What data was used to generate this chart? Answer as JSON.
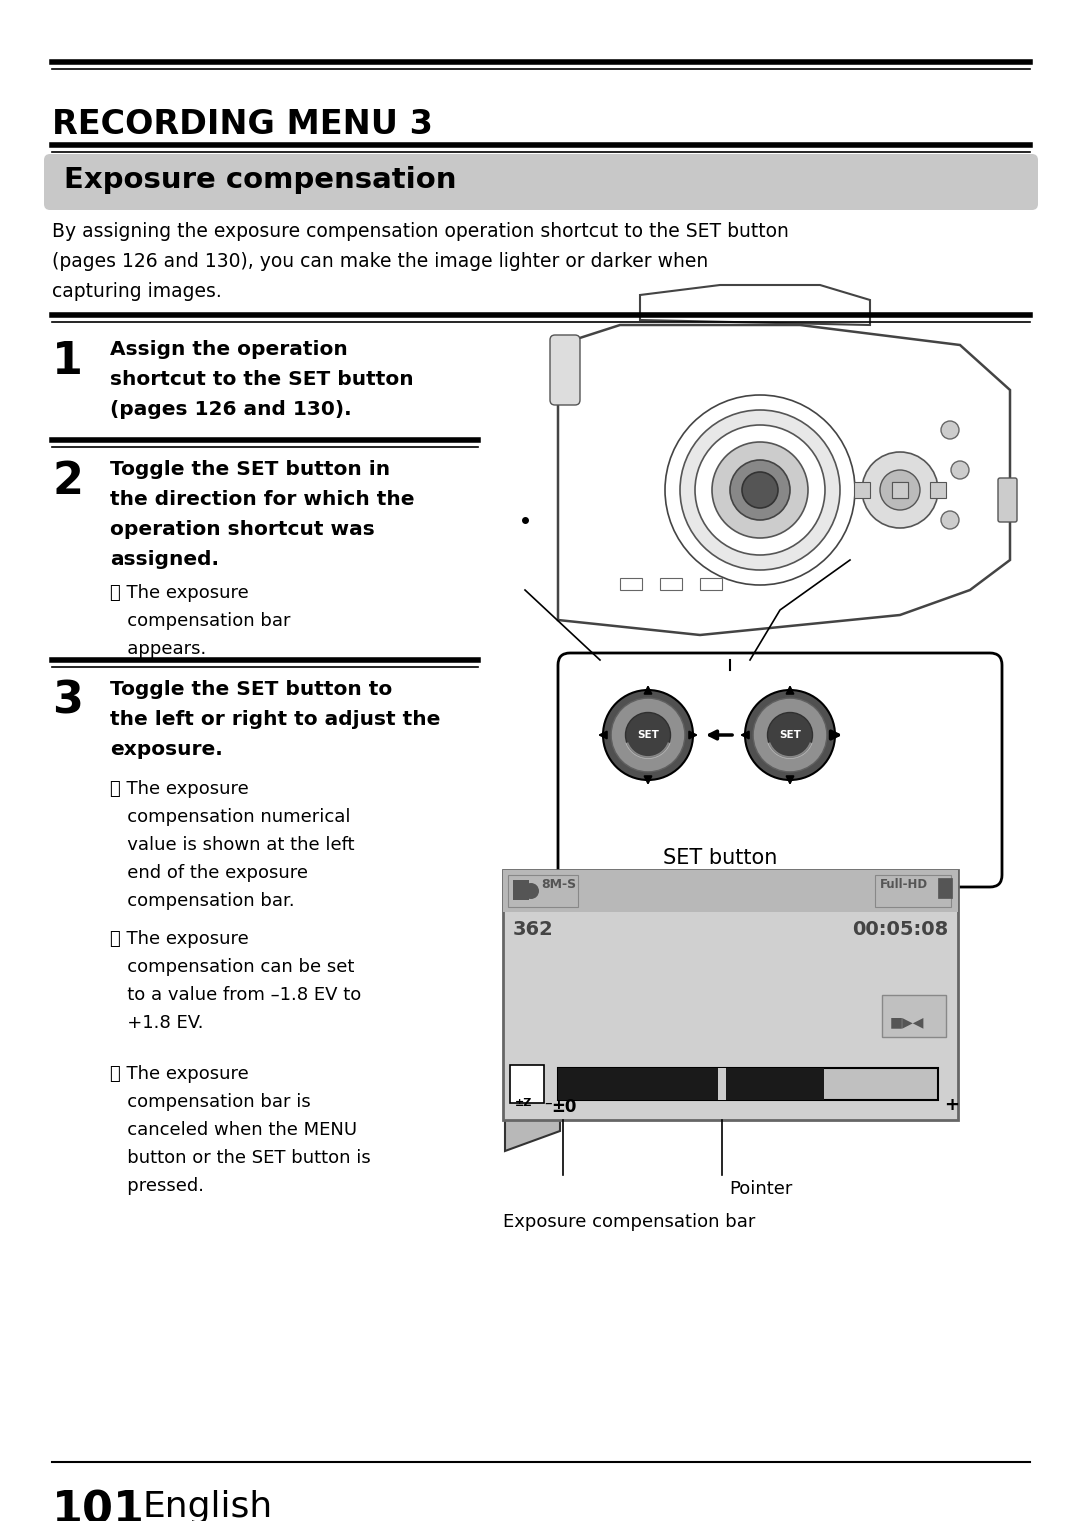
{
  "page_bg": "#ffffff",
  "title_section": "RECORDING MENU 3",
  "subtitle_bg": "#c8c8c8",
  "subtitle_text": "Exposure compensation",
  "intro_text": "By assigning the exposure compensation operation shortcut to the SET button\n(pages 126 and 130), you can make the image lighter or darker when\ncapturing images.",
  "step1_num": "1",
  "step1_bold": "Assign the operation\nshortcut to the SET button\n(pages 126 and 130).",
  "step2_num": "2",
  "step2_bold": "Toggle the SET button in\nthe direction for which the\noperation shortcut was\nassigned.",
  "step2_bullet": "The exposure\ncompensation bar\nappears.",
  "step3_num": "3",
  "step3_bold": "Toggle the SET button to\nthe left or right to adjust the\nexposure.",
  "step3_bullets": [
    "The exposure\ncompensation numerical\nvalue is shown at the left\nend of the exposure\ncompensation bar.",
    "The exposure\ncompensation can be set\nto a value from –1.8 EV to\n+1.8 EV.",
    "The exposure\ncompensation bar is\ncanceled when the MENU\nbutton or the SET button is\npressed."
  ],
  "footer_num": "101",
  "footer_text": "English",
  "screen_top_left": "362",
  "screen_top_right": "00:05:08",
  "set_label": "SET button",
  "pointer_label": "Pointer",
  "bar_label": "Exposure compensation bar"
}
